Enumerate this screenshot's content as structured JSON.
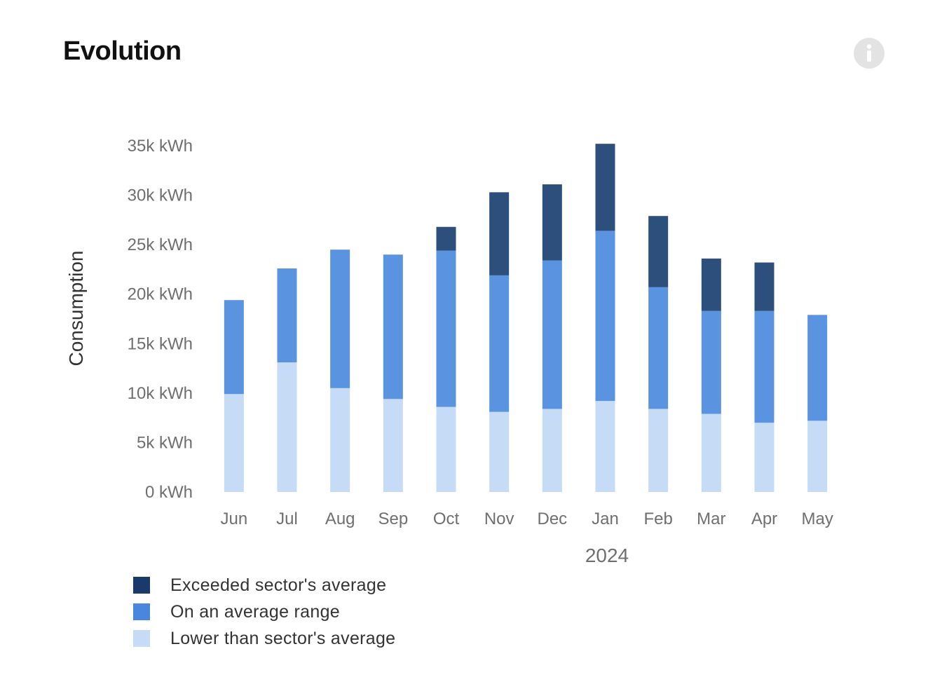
{
  "header": {
    "title": "Evolution",
    "info_icon": "info-icon"
  },
  "colors": {
    "exceeded": "#2c4f7c",
    "average": "#5a93e0",
    "lower": "#c6dbf5",
    "legend_exceeded": "#1a3a6b",
    "legend_average": "#4a86de",
    "legend_lower": "#c6dbf5"
  },
  "chart_data": {
    "type": "bar",
    "stacked": true,
    "categories": [
      "Jun",
      "Jul",
      "Aug",
      "Sep",
      "Oct",
      "Nov",
      "Dec",
      "Jan",
      "Feb",
      "Mar",
      "Apr",
      "May"
    ],
    "year_label": "2024",
    "ylabel": "Consumption",
    "ylim": [
      0,
      35000
    ],
    "y_ticks": [
      0,
      5000,
      10000,
      15000,
      20000,
      25000,
      30000,
      35000
    ],
    "y_tick_labels": [
      "0 kWh",
      "5k kWh",
      "10k kWh",
      "15k kWh",
      "20k kWh",
      "25k kWh",
      "30k kWh",
      "35k kWh"
    ],
    "grid": false,
    "legend_position": "bottom-left",
    "series": [
      {
        "name": "Lower than sector's average",
        "color_key": "lower",
        "values": [
          9900,
          13100,
          10500,
          9400,
          8600,
          8100,
          8400,
          9200,
          8400,
          7900,
          7000,
          7200
        ]
      },
      {
        "name": "On an average range",
        "color_key": "average",
        "values": [
          9500,
          9500,
          14000,
          14600,
          15800,
          13800,
          15000,
          17200,
          12300,
          10400,
          11300,
          10700
        ]
      },
      {
        "name": "Exceeded sector's average",
        "color_key": "exceeded",
        "values": [
          0,
          0,
          0,
          0,
          2400,
          8400,
          7700,
          8800,
          7200,
          5300,
          4900,
          0
        ]
      }
    ]
  },
  "legend": {
    "items": [
      {
        "label": "Exceeded sector's average",
        "color_key": "legend_exceeded"
      },
      {
        "label": "On an average range",
        "color_key": "legend_average"
      },
      {
        "label": "Lower than sector's average",
        "color_key": "legend_lower"
      }
    ]
  }
}
